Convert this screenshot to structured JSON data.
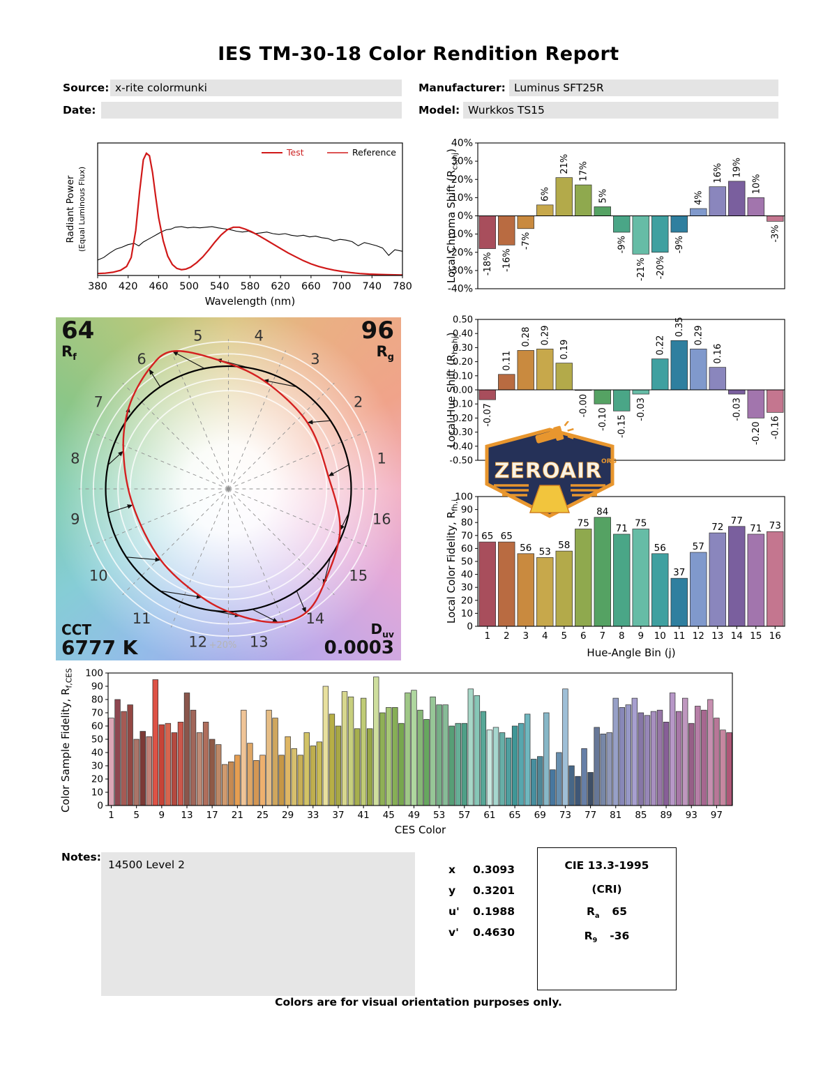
{
  "report": {
    "title": "IES TM-30-18 Color Rendition Report",
    "fields": {
      "source_label": "Source:",
      "source": "x-rite colormunki",
      "manufacturer_label": "Manufacturer:",
      "manufacturer": "Luminus SFT25R",
      "date_label": "Date:",
      "date": "",
      "model_label": "Model:",
      "model": "Wurkkos TS15"
    },
    "notes_label": "Notes:",
    "notes": "14500 Level 2",
    "footer": "Colors are for visual orientation purposes only.",
    "chromaticity": {
      "x_label": "x",
      "x": "0.3093",
      "y_label": "y",
      "y": "0.3201",
      "u_label": "u'",
      "u": "0.1988",
      "v_label": "v'",
      "v": "0.4630"
    },
    "cie": {
      "title": "CIE 13.3-1995",
      "subtitle": "(CRI)",
      "ra_label": "R_{a}",
      "ra_value": "65",
      "r9_label": "R_{9}",
      "r9_value": "-36"
    }
  },
  "cvg": {
    "rf_value": "64",
    "rf_label": "R_{f}",
    "rg_value": "96",
    "rg_label": "R_{g}",
    "cct_label": "CCT",
    "cct_value": "6777 K",
    "duv_label": "D_{uv}",
    "duv_value": "0.0003",
    "ring_label": "+20%",
    "bins": [
      "1",
      "2",
      "3",
      "4",
      "5",
      "6",
      "7",
      "8",
      "9",
      "10",
      "11",
      "12",
      "13",
      "14",
      "15",
      "16"
    ]
  },
  "watermark": {
    "line": "ZEROAIR",
    "org": "ORG"
  },
  "palette": {
    "hue_bins": [
      "#a84e5c",
      "#b96b41",
      "#c98a3f",
      "#c7a84b",
      "#b3aa4a",
      "#8fa94e",
      "#55a263",
      "#4aa687",
      "#66bca6",
      "#3fa0a0",
      "#2f7f9f",
      "#8099cc",
      "#8a86bd",
      "#7a5f9e",
      "#a275ad",
      "#c4768f"
    ],
    "test_line": "#d01818",
    "reference_line": "#000000"
  },
  "chart_data": [
    {
      "id": "spd",
      "type": "line",
      "xlabel": "Wavelength (nm)",
      "ylabel_line1": "Radiant Power",
      "ylabel_line2": "(Equal Luminous Flux)",
      "xlim": [
        380,
        780
      ],
      "xticks": [
        380,
        420,
        460,
        500,
        540,
        580,
        620,
        660,
        700,
        740,
        780
      ],
      "legend_position": "upper right",
      "series": [
        {
          "name": "Test",
          "color": "#d01818",
          "x": [
            380,
            390,
            400,
            410,
            418,
            424,
            430,
            435,
            440,
            444,
            448,
            452,
            456,
            460,
            466,
            472,
            478,
            484,
            490,
            496,
            502,
            510,
            518,
            526,
            534,
            542,
            550,
            558,
            566,
            574,
            582,
            590,
            600,
            610,
            620,
            630,
            640,
            650,
            660,
            670,
            680,
            690,
            700,
            712,
            724,
            736,
            748,
            760,
            770,
            780
          ],
          "y": [
            0.015,
            0.018,
            0.025,
            0.04,
            0.07,
            0.14,
            0.35,
            0.65,
            0.9,
            0.95,
            0.93,
            0.8,
            0.62,
            0.45,
            0.27,
            0.15,
            0.085,
            0.055,
            0.045,
            0.05,
            0.065,
            0.1,
            0.145,
            0.2,
            0.26,
            0.315,
            0.355,
            0.375,
            0.375,
            0.36,
            0.34,
            0.315,
            0.28,
            0.245,
            0.21,
            0.175,
            0.145,
            0.115,
            0.09,
            0.07,
            0.055,
            0.042,
            0.032,
            0.022,
            0.015,
            0.011,
            0.008,
            0.006,
            0.005,
            0.004
          ]
        },
        {
          "name": "Reference",
          "color": "#000000",
          "x": [
            380,
            388,
            396,
            404,
            412,
            420,
            428,
            434,
            440,
            446,
            452,
            458,
            464,
            470,
            476,
            482,
            490,
            498,
            506,
            514,
            522,
            530,
            538,
            546,
            554,
            562,
            570,
            578,
            586,
            594,
            602,
            610,
            618,
            626,
            634,
            642,
            650,
            658,
            666,
            674,
            682,
            690,
            698,
            706,
            714,
            722,
            730,
            738,
            746,
            754,
            762,
            770,
            780
          ],
          "y": [
            0.12,
            0.14,
            0.175,
            0.205,
            0.22,
            0.24,
            0.25,
            0.23,
            0.26,
            0.28,
            0.3,
            0.32,
            0.34,
            0.355,
            0.36,
            0.375,
            0.38,
            0.37,
            0.375,
            0.37,
            0.375,
            0.38,
            0.37,
            0.363,
            0.356,
            0.344,
            0.338,
            0.344,
            0.325,
            0.331,
            0.338,
            0.325,
            0.319,
            0.325,
            0.313,
            0.306,
            0.313,
            0.3,
            0.306,
            0.294,
            0.288,
            0.269,
            0.281,
            0.275,
            0.263,
            0.231,
            0.256,
            0.244,
            0.231,
            0.213,
            0.156,
            0.2,
            0.188
          ]
        }
      ]
    },
    {
      "id": "chroma",
      "type": "bar",
      "ylabel": "Local Chroma Shift (R_{cs,hj})",
      "ylim": [
        -40,
        40
      ],
      "yticks": {
        "values": [
          40,
          30,
          20,
          10,
          0,
          -10,
          -20,
          -30,
          -40
        ],
        "labels": [
          "40%",
          "30%",
          "20%",
          "10%",
          "0%",
          "-10%",
          "-20%",
          "-30%",
          "-40%"
        ]
      },
      "categories": [
        1,
        2,
        3,
        4,
        5,
        6,
        7,
        8,
        9,
        10,
        11,
        12,
        13,
        14,
        15,
        16
      ],
      "values": [
        -18,
        -16,
        -7,
        6,
        21,
        17,
        5,
        -9,
        -21,
        -20,
        -9,
        4,
        16,
        19,
        10,
        -3
      ],
      "bar_labels": [
        "-18%",
        "-16%",
        "-7%",
        "6%",
        "21%",
        "17%",
        "5%",
        "-9%",
        "-21%",
        "-20%",
        "-9%",
        "4%",
        "16%",
        "19%",
        "10%",
        "-3%"
      ]
    },
    {
      "id": "hue",
      "type": "bar",
      "ylabel": "Local Hue Shift (R_{hs,hj})",
      "ylim": [
        -0.5,
        0.5
      ],
      "yticks": {
        "values": [
          0.5,
          0.4,
          0.3,
          0.2,
          0.1,
          0,
          -0.1,
          -0.2,
          -0.3,
          -0.4,
          -0.5
        ],
        "labels": [
          "0.50",
          "0.40",
          "0.30",
          "0.20",
          "0.10",
          "0.00",
          "-0.10",
          "-0.20",
          "-0.30",
          "-0.40",
          "-0.50"
        ]
      },
      "categories": [
        1,
        2,
        3,
        4,
        5,
        6,
        7,
        8,
        9,
        10,
        11,
        12,
        13,
        14,
        15,
        16
      ],
      "values": [
        -0.07,
        0.11,
        0.28,
        0.29,
        0.19,
        -0.004,
        -0.1,
        -0.15,
        -0.03,
        0.22,
        0.35,
        0.29,
        0.16,
        -0.03,
        -0.2,
        -0.16
      ],
      "bar_labels": [
        "-0.07",
        "0.11",
        "0.28",
        "0.29",
        "0.19",
        "-0.00",
        "-0.10",
        "-0.15",
        "-0.03",
        "0.22",
        "0.35",
        "0.29",
        "0.16",
        "-0.03",
        "-0.20",
        "-0.16"
      ]
    },
    {
      "id": "fid",
      "type": "bar",
      "ylabel": "Local Color Fidelity, R_{fh,i}",
      "xlabel": "Hue-Angle Bin (j)",
      "ylim": [
        0,
        100
      ],
      "yticks": {
        "values": [
          0,
          10,
          20,
          30,
          40,
          50,
          60,
          70,
          80,
          90,
          100
        ],
        "labels": [
          "0",
          "10",
          "20",
          "30",
          "40",
          "50",
          "60",
          "70",
          "80",
          "90",
          "100"
        ]
      },
      "xticks": {
        "values": [
          1,
          2,
          3,
          4,
          5,
          6,
          7,
          8,
          9,
          10,
          11,
          12,
          13,
          14,
          15,
          16
        ],
        "labels": [
          "1",
          "2",
          "3",
          "4",
          "5",
          "6",
          "7",
          "8",
          "9",
          "10",
          "11",
          "12",
          "13",
          "14",
          "15",
          "16"
        ]
      },
      "categories": [
        1,
        2,
        3,
        4,
        5,
        6,
        7,
        8,
        9,
        10,
        11,
        12,
        13,
        14,
        15,
        16
      ],
      "values": [
        65,
        65,
        56,
        53,
        58,
        75,
        84,
        71,
        75,
        56,
        37,
        57,
        72,
        77,
        71,
        73
      ],
      "bar_labels": [
        "65",
        "65",
        "56",
        "53",
        "58",
        "75",
        "84",
        "71",
        "75",
        "56",
        "37",
        "57",
        "72",
        "77",
        "71",
        "73"
      ]
    },
    {
      "id": "ces",
      "type": "bar",
      "ylabel": "Color Sample Fidelity, R_{f,CESi}",
      "xlabel": "CES Color",
      "ylim": [
        0,
        100
      ],
      "yticks": {
        "values": [
          0,
          10,
          20,
          30,
          40,
          50,
          60,
          70,
          80,
          90,
          100
        ],
        "labels": [
          "0",
          "10",
          "20",
          "30",
          "40",
          "50",
          "60",
          "70",
          "80",
          "90",
          "100"
        ]
      },
      "xticks": {
        "values": [
          1,
          5,
          9,
          13,
          17,
          21,
          25,
          29,
          33,
          37,
          41,
          45,
          49,
          53,
          57,
          61,
          65,
          69,
          73,
          77,
          81,
          85,
          89,
          93,
          97
        ],
        "labels": [
          "1",
          "5",
          "9",
          "13",
          "17",
          "21",
          "25",
          "29",
          "33",
          "37",
          "41",
          "45",
          "49",
          "53",
          "57",
          "61",
          "65",
          "69",
          "73",
          "77",
          "81",
          "85",
          "89",
          "93",
          "97"
        ]
      },
      "values": [
        66,
        80,
        71,
        76,
        50,
        56,
        52,
        95,
        61,
        62,
        55,
        63,
        85,
        72,
        55,
        63,
        50,
        46,
        31,
        33,
        38,
        72,
        47,
        34,
        38,
        72,
        66,
        38,
        52,
        43,
        38,
        55,
        45,
        48,
        90,
        69,
        60,
        86,
        82,
        58,
        81,
        58,
        97,
        70,
        74,
        74,
        62,
        85,
        87,
        72,
        65,
        82,
        76,
        76,
        60,
        62,
        62,
        88,
        83,
        71,
        57,
        59,
        55,
        51,
        60,
        62,
        69,
        35,
        37,
        70,
        27,
        40,
        88,
        30,
        22,
        43,
        25,
        59,
        54,
        55,
        81,
        74,
        76,
        81,
        70,
        68,
        71,
        72,
        63,
        85,
        71,
        81,
        62,
        75,
        72,
        80,
        66,
        57,
        55
      ],
      "colors": [
        "#dca6b6",
        "#8e4650",
        "#a65a54",
        "#934743",
        "#aa7468",
        "#7c3a36",
        "#c08278",
        "#dd5246",
        "#c64438",
        "#d6654f",
        "#b44a40",
        "#cb574b",
        "#8a564c",
        "#a1665a",
        "#bd8a76",
        "#b06e5c",
        "#8f5a47",
        "#bd8968",
        "#d09a6e",
        "#c68a52",
        "#e59e52",
        "#efc497",
        "#dfa766",
        "#d49754",
        "#eeb06e",
        "#e6bd85",
        "#cfa75e",
        "#c69746",
        "#dfb765",
        "#d6bf6e",
        "#c7af56",
        "#d2c366",
        "#bfae4e",
        "#c9bb56",
        "#e8e09e",
        "#b7af46",
        "#a7a746",
        "#d7d78e",
        "#c7cf7e",
        "#a7af4e",
        "#bfcb76",
        "#97a746",
        "#cfdf9e",
        "#8fb056",
        "#a7c776",
        "#87af56",
        "#77a74e",
        "#9fc787",
        "#afd79f",
        "#87b777",
        "#67a75f",
        "#97c797",
        "#77af87",
        "#87bb97",
        "#579f77",
        "#67af97",
        "#4f9f87",
        "#a7d7c7",
        "#87c7b7",
        "#57a797",
        "#c7e7df",
        "#a7d7cf",
        "#67afa7",
        "#4f9f9f",
        "#3f9797",
        "#57a7af",
        "#6fb7bf",
        "#478f9f",
        "#4f8797",
        "#87b7c7",
        "#47779f",
        "#678faf",
        "#9fbfd7",
        "#476787",
        "#3f5777",
        "#677fa7",
        "#3f4f67",
        "#677797",
        "#7787a7",
        "#8f97b7",
        "#97a0c7",
        "#8888b8",
        "#9798c7",
        "#a79fcf",
        "#8777a7",
        "#9787b7",
        "#a78fbf",
        "#9777a7",
        "#875f97",
        "#b797c7",
        "#a777a7",
        "#bf97bf",
        "#975f87",
        "#b77fa7",
        "#a76790",
        "#c78fb0",
        "#b77797",
        "#c787a0",
        "#af5777"
      ]
    }
  ]
}
